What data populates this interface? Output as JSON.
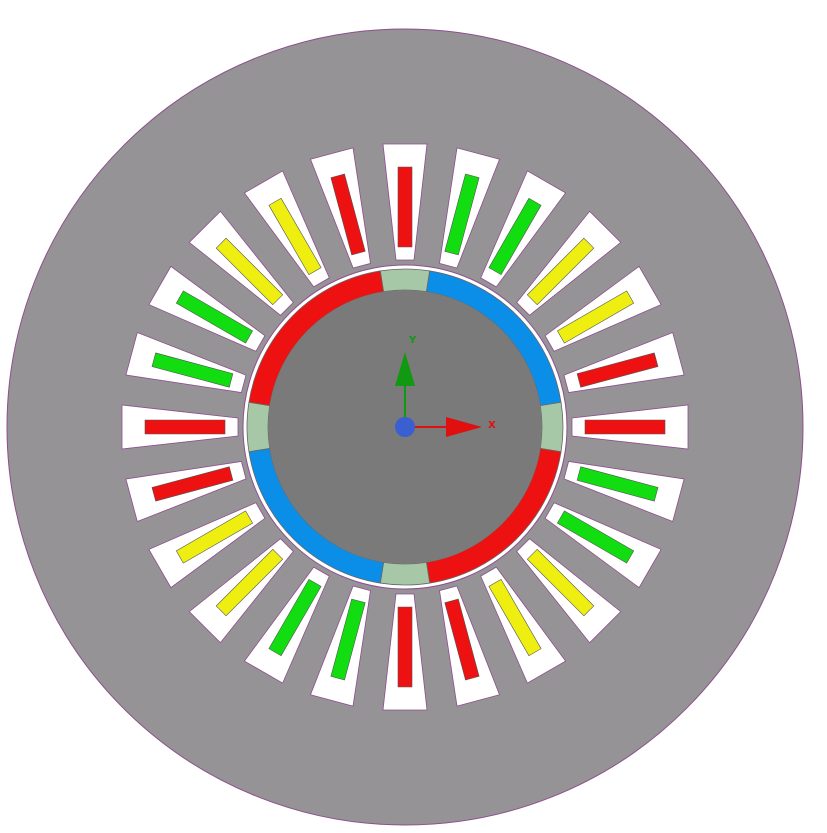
{
  "axes": {
    "x_label": "X",
    "y_label": "Y",
    "x_color": "#e01010",
    "y_color": "#119911",
    "origin_color": "#3a5fd0",
    "origin_icon": "origin-sphere-icon"
  },
  "stator": {
    "slot_count": 24,
    "core_color": "#959395",
    "slot_color": "#ffffff",
    "outline_color": "#8e4f8e",
    "coil_phase_colors": {
      "A": "#ee1111",
      "B": "#11dd11",
      "C": "#eeee11"
    },
    "coil_pattern_clockwise_from_top": [
      "A",
      "B",
      "B",
      "C",
      "C",
      "A",
      "A",
      "B",
      "B",
      "C",
      "C",
      "A",
      "A",
      "B",
      "B",
      "C",
      "C",
      "A",
      "A",
      "B",
      "B",
      "C",
      "C",
      "A"
    ]
  },
  "rotor": {
    "core_color": "#7a7a7a",
    "spacer_color": "#a7c8a7",
    "magnet_colors": {
      "north": "#ee1111",
      "south": "#0a8ee8"
    },
    "magnet_pattern_clockwise_from_top": [
      "south",
      "north",
      "south",
      "north"
    ]
  }
}
